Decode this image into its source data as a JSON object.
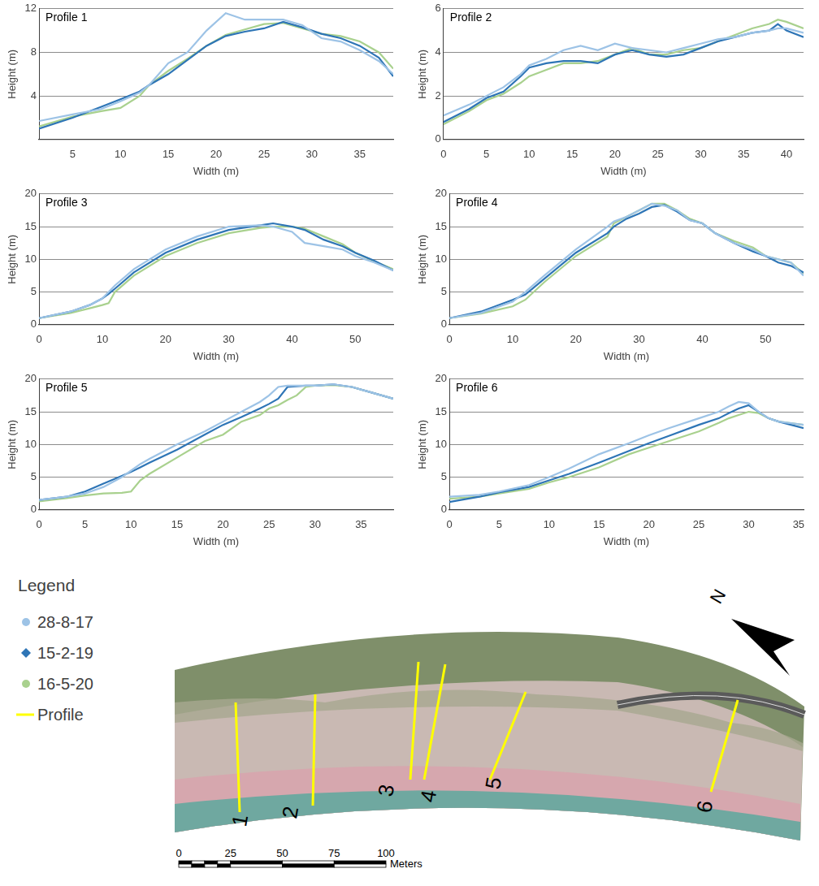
{
  "chart_data": [
    {
      "type": "line",
      "title": "Profile 1",
      "x_label": "Width (m)",
      "y_label": "Height (m)",
      "x": [
        1.5,
        5,
        8,
        10,
        12,
        13,
        15,
        17,
        19,
        21,
        23,
        25,
        27,
        29,
        31,
        33,
        35,
        37,
        38.5
      ],
      "series": [
        {
          "name": "28-8-17",
          "color": "#9dc3e6",
          "marker": "circle",
          "values": [
            1.7,
            2.3,
            2.8,
            3.5,
            4.3,
            5,
            7,
            8,
            10,
            11.6,
            11,
            11,
            11,
            10.5,
            9.3,
            9,
            8.2,
            7.2,
            6
          ]
        },
        {
          "name": "15-2-19",
          "color": "#2e75b6",
          "marker": "diamond",
          "values": [
            1.0,
            2,
            3,
            3.7,
            4.4,
            5,
            6,
            7.3,
            8.6,
            9.5,
            9.9,
            10.2,
            10.8,
            10.3,
            9.7,
            9.3,
            8.6,
            7.5,
            5.8
          ]
        },
        {
          "name": "16-5-20",
          "color": "#a9d18e",
          "marker": "circle",
          "values": [
            1.2,
            2.1,
            2.6,
            2.9,
            4,
            5,
            6.3,
            7.4,
            8.6,
            9.6,
            10.1,
            10.6,
            10.7,
            10.2,
            9.7,
            9.5,
            9,
            8,
            6.5
          ]
        }
      ],
      "xlim": [
        1.5,
        38.5
      ],
      "xticks": [
        5,
        10,
        15,
        20,
        25,
        30,
        35
      ],
      "ylim": [
        0,
        12
      ],
      "yticks": [
        4,
        8,
        12
      ],
      "grid": true
    },
    {
      "type": "line",
      "title": "Profile 2",
      "x_label": "Width (m)",
      "y_label": "Height (m)",
      "x": [
        0,
        3,
        5,
        7,
        9,
        10,
        12,
        14,
        16,
        18,
        20,
        22,
        24,
        26,
        28,
        30,
        32,
        34,
        36,
        38,
        39,
        40,
        42
      ],
      "series": [
        {
          "name": "28-8-17",
          "color": "#9dc3e6",
          "marker": "circle",
          "values": [
            1.1,
            1.6,
            2.0,
            2.4,
            3.0,
            3.4,
            3.7,
            4.1,
            4.3,
            4.1,
            4.4,
            4.2,
            4.1,
            4.0,
            4.2,
            4.4,
            4.6,
            4.7,
            4.9,
            5.0,
            5.1,
            5.1,
            4.9
          ]
        },
        {
          "name": "15-2-19",
          "color": "#2e75b6",
          "marker": "diamond",
          "values": [
            0.8,
            1.4,
            1.9,
            2.2,
            2.9,
            3.3,
            3.5,
            3.6,
            3.6,
            3.5,
            3.9,
            4.1,
            3.9,
            3.8,
            3.9,
            4.2,
            4.5,
            4.7,
            4.9,
            5.0,
            5.3,
            5.0,
            4.7
          ]
        },
        {
          "name": "16-5-20",
          "color": "#a9d18e",
          "marker": "circle",
          "values": [
            0.7,
            1.3,
            1.8,
            2.1,
            2.6,
            2.9,
            3.2,
            3.5,
            3.5,
            3.6,
            3.9,
            4.2,
            3.9,
            3.9,
            4.1,
            4.2,
            4.5,
            4.8,
            5.1,
            5.3,
            5.5,
            5.4,
            5.1
          ]
        }
      ],
      "xlim": [
        0,
        42
      ],
      "xticks": [
        0,
        5,
        10,
        15,
        20,
        25,
        30,
        35,
        40
      ],
      "ylim": [
        0,
        6
      ],
      "yticks": [
        0,
        2,
        4,
        6
      ],
      "grid": true
    },
    {
      "type": "line",
      "title": "Profile 3",
      "x_label": "Width (m)",
      "y_label": "Height (m)",
      "x": [
        0,
        5,
        8,
        10,
        11,
        12,
        15,
        20,
        25,
        30,
        35,
        37,
        40,
        42,
        45,
        48,
        50,
        53,
        56
      ],
      "series": [
        {
          "name": "28-8-17",
          "color": "#9dc3e6",
          "marker": "circle",
          "values": [
            1,
            2,
            3,
            4,
            5,
            6,
            8.5,
            11.5,
            13.5,
            15,
            15.2,
            15,
            14.2,
            12.5,
            12,
            11.5,
            10.5,
            9.5,
            8.3
          ]
        },
        {
          "name": "15-2-19",
          "color": "#2e75b6",
          "marker": "diamond",
          "values": [
            1,
            2,
            3,
            4,
            4.7,
            5.5,
            8,
            11,
            13,
            14.5,
            15.2,
            15.5,
            15,
            14.5,
            13,
            12,
            11,
            9.8,
            8.3
          ]
        },
        {
          "name": "16-5-20",
          "color": "#a9d18e",
          "marker": "circle",
          "values": [
            1,
            1.8,
            2.5,
            3,
            3.3,
            5,
            7.5,
            10.5,
            12.5,
            14,
            14.8,
            15,
            15,
            14.7,
            13.5,
            12.3,
            11,
            9.7,
            8.5
          ]
        }
      ],
      "xlim": [
        0,
        56
      ],
      "xticks": [
        0,
        10,
        20,
        30,
        40,
        50
      ],
      "ylim": [
        0,
        20
      ],
      "yticks": [
        0,
        5,
        10,
        15,
        20
      ],
      "grid": true
    },
    {
      "type": "line",
      "title": "Profile 4",
      "x_label": "Width (m)",
      "y_label": "Height (m)",
      "x": [
        0,
        5,
        10,
        12,
        15,
        20,
        25,
        26,
        28,
        30,
        32,
        34,
        36,
        38,
        40,
        42,
        45,
        48,
        50,
        52,
        54,
        56
      ],
      "series": [
        {
          "name": "28-8-17",
          "color": "#9dc3e6",
          "marker": "circle",
          "values": [
            1,
            1.8,
            3.5,
            5,
            7.5,
            11.5,
            15,
            15.8,
            16.5,
            17.5,
            18.5,
            18.2,
            17.5,
            16,
            15.5,
            14,
            12.5,
            11.5,
            10.5,
            10,
            9.5,
            7.5
          ]
        },
        {
          "name": "15-2-19",
          "color": "#2e75b6",
          "marker": "diamond",
          "values": [
            1,
            2,
            3.8,
            4.6,
            7,
            11,
            14,
            15,
            16.2,
            17,
            18,
            18.3,
            17.3,
            16,
            15.5,
            14,
            12.5,
            11.2,
            10.5,
            9.5,
            9,
            8
          ]
        },
        {
          "name": "16-5-20",
          "color": "#a9d18e",
          "marker": "circle",
          "values": [
            1,
            1.7,
            2.8,
            3.8,
            6.5,
            10.5,
            13.5,
            15.5,
            16.5,
            17.5,
            18.5,
            18.5,
            17.5,
            16.2,
            15.5,
            14,
            12.8,
            11.8,
            10.5,
            10,
            9.5,
            7.8
          ]
        }
      ],
      "xlim": [
        0,
        56
      ],
      "xticks": [
        0,
        10,
        20,
        30,
        40,
        50
      ],
      "ylim": [
        0,
        20
      ],
      "yticks": [
        0,
        5,
        10,
        15,
        20
      ],
      "grid": true
    },
    {
      "type": "line",
      "title": "Profile 5",
      "x_label": "Width (m)",
      "y_label": "Height (m)",
      "x": [
        0,
        3,
        5,
        7,
        9,
        10,
        11,
        12,
        15,
        18,
        20,
        22,
        24,
        25,
        26,
        27,
        28,
        29,
        30,
        32,
        34,
        36,
        38.5
      ],
      "series": [
        {
          "name": "28-8-17",
          "color": "#9dc3e6",
          "marker": "circle",
          "values": [
            1.5,
            2,
            2.5,
            3.5,
            5,
            6,
            7,
            7.8,
            10,
            12,
            13.5,
            15,
            16.5,
            17.5,
            18.8,
            19,
            19,
            19,
            19,
            19.2,
            18.8,
            18,
            17
          ]
        },
        {
          "name": "15-2-19",
          "color": "#2e75b6",
          "marker": "diamond",
          "values": [
            1.5,
            2,
            2.8,
            4,
            5.2,
            5.8,
            6.5,
            7.2,
            9.2,
            11.5,
            13,
            14.2,
            15.5,
            16.2,
            17,
            18.8,
            18.9,
            19,
            19,
            19.2,
            18.8,
            18,
            17
          ]
        },
        {
          "name": "16-5-20",
          "color": "#a9d18e",
          "marker": "circle",
          "values": [
            1.3,
            1.8,
            2.2,
            2.5,
            2.6,
            2.8,
            4.5,
            5.5,
            8,
            10.5,
            11.5,
            13.5,
            14.5,
            15.5,
            16,
            16.8,
            17.5,
            18.8,
            19,
            19.1,
            18.8,
            18,
            17
          ]
        }
      ],
      "xlim": [
        0,
        38.5
      ],
      "xticks": [
        0,
        5,
        10,
        15,
        20,
        25,
        30,
        35
      ],
      "ylim": [
        0,
        20
      ],
      "yticks": [
        0,
        5,
        10,
        15,
        20
      ],
      "grid": true
    },
    {
      "type": "line",
      "title": "Profile 6",
      "x_label": "Width (m)",
      "y_label": "Height (m)",
      "x": [
        0,
        3,
        5,
        8,
        10,
        12,
        15,
        18,
        20,
        22,
        25,
        27,
        28,
        29,
        30,
        31,
        32,
        33,
        35.5
      ],
      "series": [
        {
          "name": "28-8-17",
          "color": "#9dc3e6",
          "marker": "circle",
          "values": [
            2,
            2.3,
            2.8,
            3.8,
            5,
            6.3,
            8.5,
            10.2,
            11.4,
            12.5,
            14,
            15,
            15.8,
            16.5,
            16.3,
            15,
            14,
            13.5,
            13
          ]
        },
        {
          "name": "15-2-19",
          "color": "#2e75b6",
          "marker": "diamond",
          "values": [
            1.2,
            2,
            2.7,
            3.5,
            4.5,
            5.5,
            7.2,
            9,
            10.2,
            11.3,
            13,
            14,
            14.8,
            15.5,
            16,
            15,
            14,
            13.5,
            12.5
          ]
        },
        {
          "name": "16-5-20",
          "color": "#a9d18e",
          "marker": "circle",
          "values": [
            1.7,
            2,
            2.5,
            3.2,
            4.2,
            5,
            6.5,
            8.5,
            9.5,
            10.5,
            12,
            13.3,
            14,
            14.5,
            15,
            14.8,
            14,
            13.5,
            13
          ]
        }
      ],
      "xlim": [
        0,
        35.5
      ],
      "xticks": [
        0,
        5,
        10,
        15,
        20,
        25,
        30,
        35
      ],
      "ylim": [
        0,
        20
      ],
      "yticks": [
        0,
        5,
        10,
        15,
        20
      ],
      "grid": true
    }
  ],
  "legend_panel": {
    "title": "Legend",
    "profile_entry": "Profile",
    "profile_color": "#ffff00"
  },
  "map": {
    "profile_labels": [
      "1",
      "2",
      "3",
      "4",
      "5",
      "6"
    ],
    "north": "N",
    "scale": {
      "ticks": [
        0,
        25,
        50,
        75,
        100
      ],
      "unit": "Meters"
    }
  }
}
